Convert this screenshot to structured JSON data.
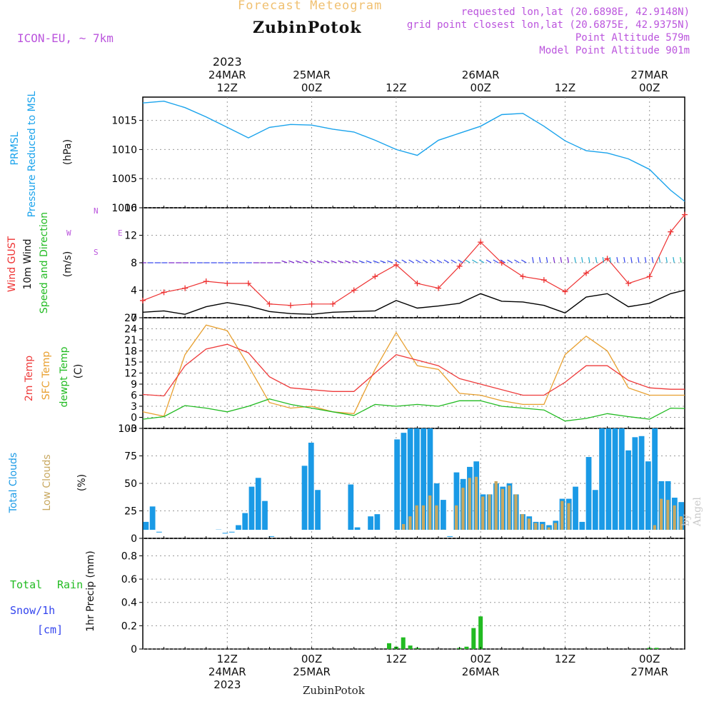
{
  "header": {
    "title": "Forecast Meteogram",
    "station": "ZubinPotok",
    "model": "ICON-EU, ~ 7km",
    "requested": "requested lon,lat (20.6898E, 42.9148N)",
    "closest": "grid point closest lon,lat (20.6875E, 42.9375N)",
    "point_altitude": "Point Altitude 579m",
    "model_altitude": "Model Point Altitude 901m",
    "footer_station": "ZubinPotok",
    "watermark": "by Angel"
  },
  "time_axis": {
    "top_year": "2023",
    "top_labels": [
      {
        "h": 12,
        "lines": [
          "24MAR",
          "12Z"
        ]
      },
      {
        "h": 24,
        "lines": [
          "25MAR",
          "00Z"
        ]
      },
      {
        "h": 36,
        "lines": [
          "12Z"
        ]
      },
      {
        "h": 48,
        "lines": [
          "26MAR",
          "00Z"
        ]
      },
      {
        "h": 60,
        "lines": [
          "12Z"
        ]
      },
      {
        "h": 72,
        "lines": [
          "27MAR",
          "00Z"
        ]
      }
    ],
    "bottom_labels": [
      {
        "h": 12,
        "lines": [
          "12Z",
          "24MAR",
          "2023"
        ]
      },
      {
        "h": 24,
        "lines": [
          "00Z",
          "25MAR"
        ]
      },
      {
        "h": 36,
        "lines": [
          "12Z"
        ]
      },
      {
        "h": 48,
        "lines": [
          "00Z",
          "26MAR"
        ]
      },
      {
        "h": 60,
        "lines": [
          "12Z"
        ]
      },
      {
        "h": 72,
        "lines": [
          "00Z",
          "27MAR"
        ]
      }
    ]
  },
  "panels": {
    "pressure": {
      "labels": [
        "PRMSL",
        "Pressure Reduced to MSL"
      ],
      "unit": "(hPa)",
      "ticks": [
        "1000",
        "1005",
        "1010",
        "1015"
      ]
    },
    "wind": {
      "labels": [
        "Wind GUST",
        "10m Wind",
        "Speed and Direction"
      ],
      "unit": "(m/s)",
      "ticks": [
        "0",
        "4",
        "8",
        "12",
        "16"
      ],
      "compass": {
        "w": "W",
        "e": "E",
        "n": "N",
        "s": "S"
      }
    },
    "temperature": {
      "labels": [
        "2m Temp",
        "SFC Temp",
        "dewpt Temp"
      ],
      "unit": "(C)",
      "ticks": [
        "-3",
        "0",
        "3",
        "6",
        "9",
        "12",
        "15",
        "18",
        "21",
        "24",
        "27"
      ]
    },
    "clouds": {
      "labels": [
        "Total Clouds",
        "Low Clouds"
      ],
      "unit": "(%)",
      "ticks": [
        "0",
        "25",
        "50",
        "75",
        "100"
      ]
    },
    "precip": {
      "labels": [
        "Total",
        "Rain",
        "Snow/1h",
        "[cm]"
      ],
      "unit": "1hr Precip (mm)",
      "ticks": [
        "0",
        "0.2",
        "0.4",
        "0.6",
        "0.8"
      ]
    }
  },
  "colors": {
    "pressure": "#1aa3ec",
    "gust": "#ee3333",
    "wind": "#000000",
    "temp2m": "#ee3b3b",
    "sfc": "#e8a030",
    "dewpt": "#22bb22",
    "total_clouds": "#1a9ae6",
    "low_clouds": "#c8a860",
    "rain": "#22bb22",
    "snow": "#3344ee",
    "purple": "#bb55dd",
    "title_orange": "#f0c070"
  },
  "chart_data": [
    {
      "type": "line",
      "name": "PRMSL",
      "x_hours": [
        0,
        3,
        6,
        9,
        12,
        15,
        18,
        21,
        24,
        27,
        30,
        33,
        36,
        39,
        42,
        45,
        48,
        51,
        54,
        57,
        60,
        63,
        66,
        69,
        72,
        75,
        77
      ],
      "values": [
        1018,
        1018.3,
        1017.2,
        1015.6,
        1013.8,
        1012.0,
        1013.8,
        1014.3,
        1014.2,
        1013.5,
        1013.0,
        1011.6,
        1010.0,
        1009.0,
        1011.6,
        1012.8,
        1014.0,
        1016.0,
        1016.2,
        1014.0,
        1011.5,
        1009.8,
        1009.4,
        1008.4,
        1006.6,
        1003.0,
        1001.1
      ],
      "ylim": [
        1000,
        1019
      ]
    },
    {
      "type": "line",
      "name": "Wind GUST",
      "x_hours": [
        0,
        3,
        6,
        9,
        12,
        15,
        18,
        21,
        24,
        27,
        30,
        33,
        36,
        39,
        42,
        45,
        48,
        51,
        54,
        57,
        60,
        63,
        66,
        69,
        72,
        75,
        77
      ],
      "values": [
        2.5,
        3.7,
        4.3,
        5.3,
        5.0,
        5.0,
        2.0,
        1.8,
        2.0,
        2.0,
        4.0,
        6.0,
        7.7,
        5.0,
        4.3,
        7.5,
        11.0,
        8.0,
        6.0,
        5.5,
        3.8,
        6.5,
        8.6,
        5.0,
        6.0,
        12.5,
        15.0
      ],
      "ylim": [
        0,
        16
      ]
    },
    {
      "type": "line",
      "name": "10m Wind",
      "x_hours": [
        0,
        3,
        6,
        9,
        12,
        15,
        18,
        21,
        24,
        27,
        30,
        33,
        36,
        39,
        42,
        45,
        48,
        51,
        54,
        57,
        60,
        63,
        66,
        69,
        72,
        75,
        77
      ],
      "values": [
        0.8,
        1.0,
        0.5,
        1.6,
        2.2,
        1.7,
        0.9,
        0.6,
        0.5,
        0.8,
        0.9,
        1.0,
        2.5,
        1.4,
        1.7,
        2.1,
        3.5,
        2.4,
        2.3,
        1.8,
        0.7,
        3.0,
        3.5,
        1.6,
        2.1,
        3.5,
        4.0
      ],
      "ylim": [
        0,
        16
      ]
    },
    {
      "type": "line",
      "name": "2m Temp",
      "x_hours": [
        0,
        3,
        6,
        9,
        12,
        15,
        18,
        21,
        24,
        27,
        30,
        33,
        36,
        39,
        42,
        45,
        48,
        51,
        54,
        57,
        60,
        63,
        66,
        69,
        72,
        75,
        77
      ],
      "values": [
        6.2,
        5.8,
        14.0,
        18.5,
        19.8,
        17.5,
        11.0,
        8.0,
        7.5,
        7.0,
        7.0,
        12.0,
        17.0,
        15.5,
        14.0,
        10.5,
        9.0,
        7.5,
        6.0,
        6.0,
        9.5,
        14.0,
        14.0,
        10.0,
        8.0,
        7.6,
        7.6
      ],
      "ylim": [
        -3,
        27
      ]
    },
    {
      "type": "line",
      "name": "SFC Temp",
      "x_hours": [
        0,
        3,
        6,
        9,
        12,
        15,
        18,
        21,
        24,
        27,
        30,
        33,
        36,
        39,
        42,
        45,
        48,
        51,
        54,
        57,
        60,
        63,
        66,
        69,
        72,
        75,
        77
      ],
      "values": [
        1.5,
        0.3,
        17.0,
        25.0,
        23.5,
        14.0,
        4.0,
        2.5,
        3.0,
        1.5,
        1.0,
        13.0,
        23.0,
        14.0,
        13.0,
        6.5,
        6.0,
        4.5,
        3.5,
        3.5,
        17.0,
        22.0,
        18.0,
        8.0,
        6.0,
        6.0,
        6.0
      ],
      "ylim": [
        -3,
        27
      ]
    },
    {
      "type": "line",
      "name": "dewpt Temp",
      "x_hours": [
        0,
        3,
        6,
        9,
        12,
        15,
        18,
        21,
        24,
        27,
        30,
        33,
        36,
        39,
        42,
        45,
        48,
        51,
        54,
        57,
        60,
        63,
        66,
        69,
        72,
        75,
        77
      ],
      "values": [
        -0.5,
        0.2,
        3.2,
        2.5,
        1.5,
        3.0,
        5.0,
        3.5,
        2.5,
        1.5,
        0.5,
        3.5,
        3.0,
        3.5,
        3.0,
        4.5,
        4.5,
        3.0,
        2.5,
        2.0,
        -1.0,
        -0.3,
        1.0,
        0.2,
        -0.5,
        2.5,
        2.4
      ],
      "ylim": [
        -3,
        27
      ]
    },
    {
      "type": "bar",
      "name": "Total Clouds",
      "unit": "%",
      "values": [
        15,
        29,
        6,
        0,
        0,
        0,
        0,
        0,
        0,
        0,
        0,
        8,
        5,
        6,
        12,
        23,
        47,
        55,
        34,
        2,
        0,
        0,
        0,
        0,
        66,
        87,
        44,
        0,
        0,
        0,
        0,
        49,
        10,
        0,
        20,
        22,
        0,
        0,
        90,
        96,
        100,
        100,
        100,
        100,
        50,
        35,
        2,
        60,
        54,
        65,
        70,
        40,
        40,
        50,
        47,
        50,
        40,
        22,
        20,
        15,
        15,
        12,
        16,
        36,
        36,
        47,
        15,
        74,
        44,
        100,
        100,
        100,
        100,
        80,
        92,
        93,
        70,
        100,
        52,
        52,
        37,
        33
      ],
      "ylim": [
        0,
        100
      ]
    },
    {
      "type": "bar",
      "name": "Low Clouds",
      "unit": "%",
      "values": [
        0,
        0,
        0,
        0,
        0,
        0,
        0,
        0,
        0,
        0,
        0,
        0,
        0,
        0,
        0,
        2,
        4,
        4,
        2,
        0,
        0,
        0,
        0,
        0,
        0,
        0,
        0,
        0,
        0,
        0,
        0,
        0,
        0,
        0,
        0,
        0,
        0,
        0,
        0,
        13,
        20,
        30,
        30,
        39,
        30,
        8,
        0,
        30,
        46,
        55,
        56,
        38,
        40,
        52,
        45,
        48,
        40,
        22,
        18,
        14,
        13,
        10,
        14,
        34,
        32,
        4,
        4,
        4,
        2,
        0,
        0,
        0,
        0,
        0,
        0,
        0,
        0,
        12,
        36,
        35,
        30,
        20
      ],
      "ylim": [
        0,
        100
      ]
    },
    {
      "type": "bar",
      "name": "Total Rain",
      "unit": "mm",
      "x_hours": [
        35,
        36,
        37,
        38,
        39,
        45,
        46,
        47,
        48,
        72,
        73
      ],
      "values": [
        0.05,
        0.02,
        0.1,
        0.03,
        0.01,
        0.01,
        0.02,
        0.18,
        0.28,
        0.01,
        0.01
      ],
      "ylim": [
        0,
        0.95
      ]
    }
  ],
  "wind_arrows": {
    "colors_order": "purple, blue, cyan, green, yellow",
    "note_count": 80
  }
}
